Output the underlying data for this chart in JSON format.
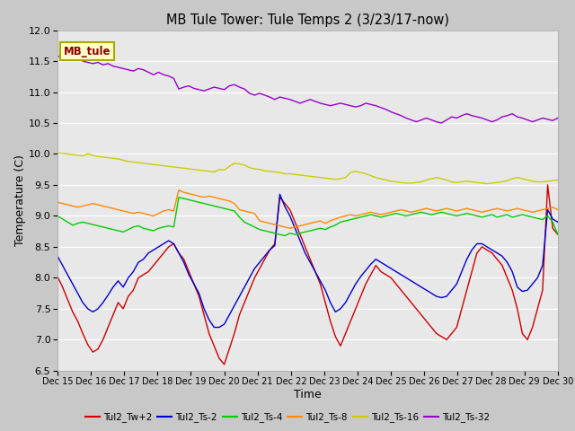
{
  "title": "MB Tule Tower: Tule Temps 2 (3/23/17-now)",
  "xlabel": "Time",
  "ylabel": "Temperature (C)",
  "ylim": [
    6.5,
    12.0
  ],
  "yticks": [
    6.5,
    7.0,
    7.5,
    8.0,
    8.5,
    9.0,
    9.5,
    10.0,
    10.5,
    11.0,
    11.5,
    12.0
  ],
  "fig_facecolor": "#c8c8c8",
  "ax_facecolor": "#e8e8e8",
  "grid_color": "#ffffff",
  "legend_label": "MB_tule",
  "legend_bg": "#ffffcc",
  "legend_edge": "#aaa800",
  "colors": {
    "Tul2_Tw+2": "#cc0000",
    "Tul2_Ts-2": "#0000cc",
    "Tul2_Ts-4": "#00cc00",
    "Tul2_Ts-8": "#ff8800",
    "Tul2_Ts-16": "#cccc00",
    "Tul2_Ts-32": "#9900cc"
  },
  "ts32": [
    11.58,
    11.56,
    11.54,
    11.52,
    11.55,
    11.5,
    11.48,
    11.46,
    11.48,
    11.44,
    11.46,
    11.42,
    11.4,
    11.38,
    11.36,
    11.34,
    11.38,
    11.36,
    11.32,
    11.28,
    11.32,
    11.28,
    11.26,
    11.22,
    11.05,
    11.08,
    11.1,
    11.06,
    11.04,
    11.02,
    11.05,
    11.08,
    11.06,
    11.04,
    11.1,
    11.12,
    11.08,
    11.05,
    10.98,
    10.95,
    10.98,
    10.95,
    10.92,
    10.88,
    10.92,
    10.9,
    10.88,
    10.85,
    10.82,
    10.85,
    10.88,
    10.85,
    10.82,
    10.8,
    10.78,
    10.8,
    10.82,
    10.8,
    10.78,
    10.76,
    10.78,
    10.82,
    10.8,
    10.78,
    10.75,
    10.72,
    10.68,
    10.65,
    10.62,
    10.58,
    10.55,
    10.52,
    10.55,
    10.58,
    10.55,
    10.52,
    10.5,
    10.55,
    10.6,
    10.58,
    10.62,
    10.65,
    10.62,
    10.6,
    10.58,
    10.55,
    10.52,
    10.55,
    10.6,
    10.62,
    10.65,
    10.6,
    10.58,
    10.55,
    10.52,
    10.55,
    10.58,
    10.56,
    10.54,
    10.58
  ],
  "ts16": [
    10.02,
    10.01,
    10.0,
    9.99,
    9.98,
    9.97,
    10.0,
    9.98,
    9.96,
    9.95,
    9.94,
    9.93,
    9.92,
    9.9,
    9.88,
    9.87,
    9.86,
    9.85,
    9.84,
    9.83,
    9.82,
    9.81,
    9.8,
    9.79,
    9.78,
    9.77,
    9.76,
    9.75,
    9.74,
    9.73,
    9.72,
    9.71,
    9.75,
    9.74,
    9.8,
    9.85,
    9.84,
    9.82,
    9.78,
    9.76,
    9.75,
    9.73,
    9.72,
    9.71,
    9.7,
    9.68,
    9.68,
    9.67,
    9.66,
    9.65,
    9.64,
    9.63,
    9.62,
    9.61,
    9.6,
    9.59,
    9.6,
    9.62,
    9.7,
    9.72,
    9.7,
    9.68,
    9.65,
    9.62,
    9.6,
    9.58,
    9.56,
    9.55,
    9.54,
    9.53,
    9.53,
    9.54,
    9.55,
    9.58,
    9.6,
    9.62,
    9.6,
    9.58,
    9.55,
    9.54,
    9.55,
    9.56,
    9.55,
    9.54,
    9.53,
    9.52,
    9.53,
    9.54,
    9.55,
    9.57,
    9.6,
    9.62,
    9.6,
    9.58,
    9.56,
    9.55,
    9.55,
    9.56,
    9.57,
    9.58
  ],
  "ts8": [
    9.22,
    9.2,
    9.18,
    9.16,
    9.14,
    9.16,
    9.18,
    9.2,
    9.18,
    9.16,
    9.14,
    9.12,
    9.1,
    9.08,
    9.06,
    9.04,
    9.06,
    9.04,
    9.02,
    9.0,
    9.04,
    9.08,
    9.1,
    9.08,
    9.42,
    9.38,
    9.36,
    9.34,
    9.32,
    9.3,
    9.32,
    9.3,
    9.28,
    9.26,
    9.24,
    9.2,
    9.1,
    9.08,
    9.06,
    9.04,
    8.92,
    8.9,
    8.88,
    8.86,
    8.84,
    8.82,
    8.8,
    8.82,
    8.84,
    8.86,
    8.88,
    8.9,
    8.92,
    8.88,
    8.92,
    8.95,
    8.98,
    9.0,
    9.02,
    9.0,
    9.02,
    9.04,
    9.06,
    9.04,
    9.02,
    9.04,
    9.06,
    9.08,
    9.1,
    9.08,
    9.06,
    9.08,
    9.1,
    9.12,
    9.1,
    9.08,
    9.1,
    9.12,
    9.1,
    9.08,
    9.1,
    9.12,
    9.1,
    9.08,
    9.06,
    9.08,
    9.1,
    9.12,
    9.1,
    9.08,
    9.1,
    9.12,
    9.1,
    9.08,
    9.06,
    9.08,
    9.1,
    9.12,
    9.14,
    9.1
  ],
  "ts4": [
    9.0,
    8.95,
    8.9,
    8.85,
    8.88,
    8.9,
    8.88,
    8.86,
    8.84,
    8.82,
    8.8,
    8.78,
    8.76,
    8.74,
    8.78,
    8.82,
    8.84,
    8.8,
    8.78,
    8.76,
    8.8,
    8.82,
    8.84,
    8.82,
    9.3,
    9.28,
    9.26,
    9.24,
    9.22,
    9.2,
    9.18,
    9.16,
    9.14,
    9.12,
    9.1,
    9.08,
    8.98,
    8.9,
    8.86,
    8.82,
    8.78,
    8.76,
    8.74,
    8.72,
    8.7,
    8.68,
    8.72,
    8.7,
    8.72,
    8.74,
    8.76,
    8.78,
    8.8,
    8.78,
    8.82,
    8.85,
    8.9,
    8.92,
    8.94,
    8.96,
    8.98,
    9.0,
    9.02,
    9.0,
    8.98,
    9.0,
    9.02,
    9.04,
    9.02,
    9.0,
    9.02,
    9.04,
    9.06,
    9.04,
    9.02,
    9.04,
    9.06,
    9.04,
    9.02,
    9.0,
    9.02,
    9.04,
    9.02,
    9.0,
    8.98,
    9.0,
    9.02,
    8.98,
    9.0,
    9.02,
    8.98,
    9.0,
    9.02,
    9.0,
    8.98,
    8.96,
    8.94,
    9.0,
    8.9,
    8.7
  ],
  "tw2": [
    8.02,
    7.85,
    7.65,
    7.45,
    7.3,
    7.1,
    6.92,
    6.8,
    6.85,
    7.0,
    7.2,
    7.4,
    7.6,
    7.5,
    7.7,
    7.8,
    8.0,
    8.05,
    8.1,
    8.2,
    8.3,
    8.4,
    8.5,
    8.55,
    8.4,
    8.3,
    8.1,
    7.9,
    7.7,
    7.4,
    7.1,
    6.9,
    6.7,
    6.6,
    6.85,
    7.1,
    7.4,
    7.6,
    7.8,
    8.0,
    8.15,
    8.3,
    8.45,
    8.55,
    9.3,
    9.2,
    9.1,
    8.9,
    8.7,
    8.5,
    8.3,
    8.1,
    7.9,
    7.6,
    7.3,
    7.05,
    6.9,
    7.1,
    7.3,
    7.5,
    7.7,
    7.9,
    8.05,
    8.2,
    8.1,
    8.05,
    8.0,
    7.9,
    7.8,
    7.7,
    7.6,
    7.5,
    7.4,
    7.3,
    7.2,
    7.1,
    7.05,
    7.0,
    7.1,
    7.2,
    7.5,
    7.8,
    8.1,
    8.4,
    8.5,
    8.45,
    8.4,
    8.3,
    8.2,
    8.0,
    7.8,
    7.5,
    7.1,
    7.0,
    7.2,
    7.5,
    7.8,
    9.5,
    8.8,
    8.7
  ],
  "ts2": [
    8.35,
    8.2,
    8.05,
    7.9,
    7.75,
    7.6,
    7.5,
    7.45,
    7.5,
    7.6,
    7.72,
    7.85,
    7.95,
    7.85,
    8.0,
    8.1,
    8.25,
    8.3,
    8.4,
    8.45,
    8.5,
    8.55,
    8.6,
    8.55,
    8.4,
    8.25,
    8.05,
    7.9,
    7.75,
    7.5,
    7.32,
    7.2,
    7.2,
    7.25,
    7.4,
    7.55,
    7.7,
    7.85,
    8.0,
    8.15,
    8.25,
    8.35,
    8.45,
    8.52,
    9.35,
    9.15,
    9.0,
    8.8,
    8.6,
    8.4,
    8.25,
    8.1,
    7.95,
    7.8,
    7.6,
    7.45,
    7.5,
    7.6,
    7.75,
    7.9,
    8.02,
    8.12,
    8.22,
    8.3,
    8.25,
    8.2,
    8.15,
    8.1,
    8.05,
    8.0,
    7.95,
    7.9,
    7.85,
    7.8,
    7.75,
    7.7,
    7.68,
    7.7,
    7.8,
    7.9,
    8.1,
    8.3,
    8.45,
    8.55,
    8.55,
    8.5,
    8.45,
    8.4,
    8.35,
    8.25,
    8.1,
    7.85,
    7.78,
    7.8,
    7.9,
    8.0,
    8.2,
    9.1,
    8.95,
    8.9
  ]
}
